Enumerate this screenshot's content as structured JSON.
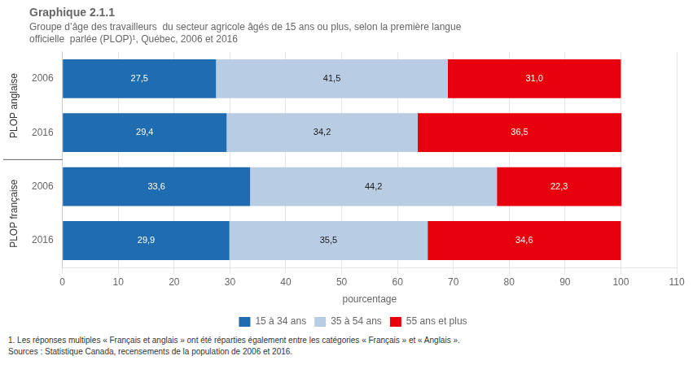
{
  "chart_data": {
    "type": "bar",
    "orientation": "horizontal",
    "stacked": true,
    "title": "Graphique 2.1.1",
    "subtitle": [
      "Groupe d’âge des travailleurs  du secteur agricole âgés de 15 ans ou plus, selon la première langue",
      "officielle  parlée (PLOP)¹, Québec, 2006 et 2016"
    ],
    "xlabel": "pourcentage",
    "categories": [
      "2006",
      "2016",
      "2006",
      "2016"
    ],
    "annotations": [
      "PLOP anglaise",
      "PLOP française"
    ],
    "footnotes": [
      "1. Les réponses multiples « Français et anglais » ont été réparties également entre les catégories « Français » et « Anglais ».",
      "Sources : Statistique Canada, recensements de la population de 2006 et 2016."
    ],
    "series": [
      {
        "name": "15 à 34 ans",
        "color": "#1F6CB0",
        "values": [
          27.5,
          29.4,
          33.6,
          29.9
        ],
        "value_labels": [
          "27,5",
          "29,4",
          "33,6",
          "29,9"
        ]
      },
      {
        "name": "35 à 54 ans",
        "color": "#B8CCE4",
        "values": [
          41.5,
          34.2,
          44.2,
          35.5
        ],
        "value_labels": [
          "41,5",
          "34,2",
          "44,2",
          "35,5"
        ]
      },
      {
        "name": "55 ans et plus",
        "color": "#E8000D",
        "values": [
          31.0,
          36.5,
          22.3,
          34.6
        ],
        "value_labels": [
          "31,0",
          "36,5",
          "22,3",
          "34,6"
        ]
      }
    ],
    "xlim": [
      0,
      110
    ],
    "xticks": [
      0,
      10,
      20,
      30,
      40,
      50,
      60,
      70,
      80,
      90,
      100,
      110
    ],
    "grid": true,
    "legend": "bottom",
    "data_labels": true
  }
}
